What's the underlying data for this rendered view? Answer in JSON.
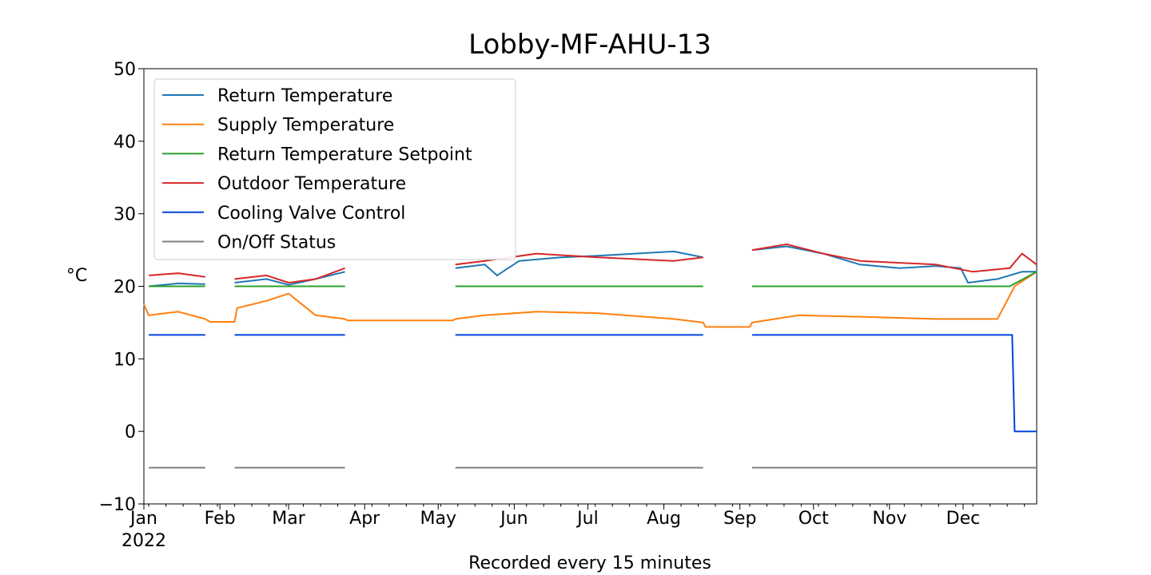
{
  "chart_data": {
    "type": "line",
    "title": "Lobby-MF-AHU-13",
    "xlabel": "Recorded every 15 minutes",
    "ylabel": "°C",
    "ylim": [
      -10,
      50
    ],
    "yticks": [
      -10,
      0,
      10,
      20,
      30,
      40,
      50
    ],
    "ytick_labels": [
      "−10",
      "0",
      "10",
      "20",
      "30",
      "40",
      "50"
    ],
    "x_range": [
      "2022-01-01",
      "2022-12-31"
    ],
    "x_ticks": [
      {
        "date": "2022-01-01",
        "label": "Jan",
        "sublabel": "2022"
      },
      {
        "date": "2022-02-01",
        "label": "Feb"
      },
      {
        "date": "2022-03-01",
        "label": "Mar"
      },
      {
        "date": "2022-04-01",
        "label": "Apr"
      },
      {
        "date": "2022-05-01",
        "label": "May"
      },
      {
        "date": "2022-06-01",
        "label": "Jun"
      },
      {
        "date": "2022-07-01",
        "label": "Jul"
      },
      {
        "date": "2022-08-01",
        "label": "Aug"
      },
      {
        "date": "2022-09-01",
        "label": "Sep"
      },
      {
        "date": "2022-10-01",
        "label": "Oct"
      },
      {
        "date": "2022-11-01",
        "label": "Nov"
      },
      {
        "date": "2022-12-01",
        "label": "Dec"
      }
    ],
    "grid": false,
    "legend_position": "top-left",
    "series": [
      {
        "name": "Return Temperature",
        "color": "#1f77b4",
        "points": [
          [
            "2022-01-03",
            20.0
          ],
          [
            "2022-01-15",
            20.4
          ],
          [
            "2022-01-26",
            20.3
          ],
          null,
          [
            "2022-02-07",
            20.5
          ],
          [
            "2022-02-20",
            21.0
          ],
          [
            "2022-03-01",
            20.2
          ],
          [
            "2022-03-12",
            21.0
          ],
          [
            "2022-03-24",
            22.0
          ],
          null,
          [
            "2022-05-08",
            22.5
          ],
          [
            "2022-05-20",
            23.0
          ],
          [
            "2022-05-25",
            21.5
          ],
          [
            "2022-06-03",
            23.5
          ],
          [
            "2022-06-20",
            24.0
          ],
          [
            "2022-07-05",
            24.2
          ],
          [
            "2022-07-20",
            24.5
          ],
          [
            "2022-08-05",
            24.8
          ],
          [
            "2022-08-17",
            24.0
          ],
          null,
          [
            "2022-09-06",
            25.0
          ],
          [
            "2022-09-20",
            25.5
          ],
          [
            "2022-10-05",
            24.5
          ],
          [
            "2022-10-20",
            23.0
          ],
          [
            "2022-11-05",
            22.5
          ],
          [
            "2022-11-20",
            22.8
          ],
          [
            "2022-11-30",
            22.5
          ],
          [
            "2022-12-03",
            20.5
          ],
          [
            "2022-12-15",
            21.0
          ],
          [
            "2022-12-25",
            22.0
          ],
          [
            "2022-12-31",
            22.0
          ]
        ]
      },
      {
        "name": "Supply Temperature",
        "color": "#ff7f0e",
        "points": [
          [
            "2022-01-01",
            17.5
          ],
          [
            "2022-01-03",
            16.0
          ],
          [
            "2022-01-15",
            16.5
          ],
          [
            "2022-01-26",
            15.5
          ],
          [
            "2022-01-28",
            15.1
          ],
          [
            "2022-02-07",
            15.1
          ],
          [
            "2022-02-08",
            17.0
          ],
          [
            "2022-02-20",
            18.0
          ],
          [
            "2022-03-01",
            19.0
          ],
          [
            "2022-03-12",
            16.0
          ],
          [
            "2022-03-24",
            15.5
          ],
          [
            "2022-03-25",
            15.3
          ],
          [
            "2022-05-07",
            15.3
          ],
          [
            "2022-05-08",
            15.5
          ],
          [
            "2022-05-20",
            16.0
          ],
          [
            "2022-06-10",
            16.5
          ],
          [
            "2022-07-05",
            16.3
          ],
          [
            "2022-08-05",
            15.5
          ],
          [
            "2022-08-17",
            15.0
          ],
          [
            "2022-08-18",
            14.4
          ],
          [
            "2022-09-05",
            14.4
          ],
          [
            "2022-09-06",
            15.0
          ],
          [
            "2022-09-25",
            16.0
          ],
          [
            "2022-10-20",
            15.8
          ],
          [
            "2022-11-20",
            15.5
          ],
          [
            "2022-12-15",
            15.5
          ],
          [
            "2022-12-22",
            20.0
          ],
          [
            "2022-12-31",
            22.0
          ]
        ]
      },
      {
        "name": "Return Temperature Setpoint",
        "color": "#2ca02c",
        "points": [
          [
            "2022-01-03",
            20.0
          ],
          [
            "2022-01-26",
            20.0
          ],
          null,
          [
            "2022-02-07",
            20.0
          ],
          [
            "2022-03-24",
            20.0
          ],
          null,
          [
            "2022-05-08",
            20.0
          ],
          [
            "2022-08-17",
            20.0
          ],
          null,
          [
            "2022-09-06",
            20.0
          ],
          [
            "2022-12-20",
            20.0
          ],
          [
            "2022-12-31",
            22.0
          ]
        ]
      },
      {
        "name": "Outdoor Temperature",
        "color": "#d62728",
        "points": [
          [
            "2022-01-03",
            21.5
          ],
          [
            "2022-01-15",
            21.8
          ],
          [
            "2022-01-26",
            21.3
          ],
          null,
          [
            "2022-02-07",
            21.0
          ],
          [
            "2022-02-20",
            21.5
          ],
          [
            "2022-03-01",
            20.5
          ],
          [
            "2022-03-12",
            21.0
          ],
          [
            "2022-03-24",
            22.5
          ],
          null,
          [
            "2022-05-08",
            23.0
          ],
          [
            "2022-05-20",
            23.5
          ],
          [
            "2022-06-10",
            24.5
          ],
          [
            "2022-07-05",
            24.0
          ],
          [
            "2022-08-05",
            23.5
          ],
          [
            "2022-08-17",
            24.0
          ],
          null,
          [
            "2022-09-06",
            25.0
          ],
          [
            "2022-09-20",
            25.8
          ],
          [
            "2022-10-05",
            24.5
          ],
          [
            "2022-10-20",
            23.5
          ],
          [
            "2022-11-20",
            23.0
          ],
          [
            "2022-12-05",
            22.0
          ],
          [
            "2022-12-20",
            22.5
          ],
          [
            "2022-12-25",
            24.5
          ],
          [
            "2022-12-31",
            23.0
          ]
        ]
      },
      {
        "name": "Cooling Valve Control",
        "color": "#0343df",
        "points": [
          [
            "2022-01-03",
            13.3
          ],
          [
            "2022-01-26",
            13.3
          ],
          null,
          [
            "2022-02-07",
            13.3
          ],
          [
            "2022-03-24",
            13.3
          ],
          null,
          [
            "2022-05-08",
            13.3
          ],
          [
            "2022-08-17",
            13.3
          ],
          null,
          [
            "2022-09-06",
            13.3
          ],
          [
            "2022-12-21",
            13.3
          ],
          [
            "2022-12-22",
            0.0
          ],
          [
            "2022-12-31",
            0.0
          ]
        ]
      },
      {
        "name": "On/Off Status",
        "color": "#808080",
        "points": [
          [
            "2022-01-03",
            -5.0
          ],
          [
            "2022-01-26",
            -5.0
          ],
          null,
          [
            "2022-02-07",
            -5.0
          ],
          [
            "2022-03-24",
            -5.0
          ],
          null,
          [
            "2022-05-08",
            -5.0
          ],
          [
            "2022-08-17",
            -5.0
          ],
          null,
          [
            "2022-09-06",
            -5.0
          ],
          [
            "2022-12-31",
            -5.0
          ]
        ]
      }
    ]
  }
}
